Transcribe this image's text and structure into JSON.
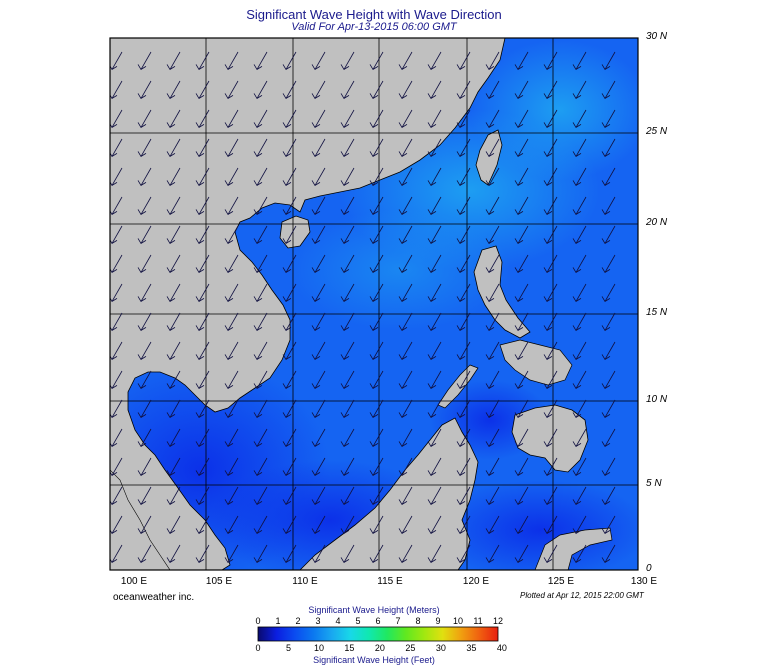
{
  "title": "Significant Wave Height with Wave Direction",
  "subtitle": "Valid For Apr-13-2015 06:00 GMT",
  "latitude_labels": [
    "30 N",
    "25 N",
    "20 N",
    "15 N",
    "10 N",
    "5 N",
    "0"
  ],
  "longitude_labels": [
    "100 E",
    "105 E",
    "110 E",
    "115 E",
    "120 E",
    "125 E",
    "130 E"
  ],
  "brand": "oceanweather inc.",
  "plotted_note": "Plotted at Apr 12, 2015 22:00 GMT",
  "colorbar": {
    "title_top": "Significant Wave Height (Meters)",
    "title_bottom": "Significant Wave Height (Feet)",
    "meters": [
      "0",
      "1",
      "2",
      "3",
      "4",
      "5",
      "6",
      "7",
      "8",
      "9",
      "10",
      "11",
      "12"
    ],
    "feet": [
      "0",
      "5",
      "10",
      "15",
      "20",
      "25",
      "30",
      "35",
      "40"
    ],
    "colors": [
      "#0a0a6e",
      "#0b1ee0",
      "#0b4cf0",
      "#0b78f0",
      "#19a8f0",
      "#18d8e8",
      "#10e8b0",
      "#20e860",
      "#60e820",
      "#a0e810",
      "#e0e010",
      "#f0a010",
      "#f06010",
      "#e82010"
    ]
  },
  "colors": {
    "land": "#c0c0c0",
    "sea_deep": "#0b2ee8",
    "sea_mid": "#1564f2",
    "sea_light": "#1ea4f2",
    "title": "#1a1a8c"
  },
  "map": {
    "lon_range": [
      100,
      130
    ],
    "lat_range": [
      0,
      30
    ],
    "grid_step_deg": 5,
    "arrow_direction": "from north-east, pointing south-west"
  }
}
